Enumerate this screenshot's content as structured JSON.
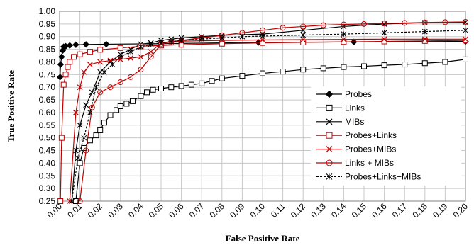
{
  "chart_data": {
    "type": "line",
    "title": "",
    "xlabel": "False Positive Rate",
    "ylabel": "True Positive Rate",
    "xlim": [
      0,
      0.2
    ],
    "ylim": [
      0.25,
      1.0
    ],
    "x_ticks": [
      "0.00",
      "0.01",
      "0.02",
      "0.03",
      "0.04",
      "0.05",
      "0.06",
      "0.07",
      "0.08",
      "0.09",
      "0.10",
      "0.11",
      "0.12",
      "0.13",
      "0.14",
      "0.15",
      "0.16",
      "0.17",
      "0.18",
      "0.19",
      "0.20"
    ],
    "y_ticks": [
      "0.25",
      "0.30",
      "0.35",
      "0.40",
      "0.45",
      "0.50",
      "0.55",
      "0.60",
      "0.65",
      "0.70",
      "0.75",
      "0.80",
      "0.85",
      "0.90",
      "0.95",
      "1.00"
    ],
    "grid": true,
    "legend_position": "right",
    "series": [
      {
        "name": "Probes",
        "color": "#000000",
        "marker": "diamond-filled",
        "dash": "",
        "x": [
          0.0002,
          0.0005,
          0.001,
          0.0015,
          0.002,
          0.003,
          0.005,
          0.008,
          0.013,
          0.023,
          0.05,
          0.098,
          0.145,
          0.2
        ],
        "y": [
          0.74,
          0.79,
          0.82,
          0.845,
          0.86,
          0.862,
          0.865,
          0.868,
          0.869,
          0.87,
          0.872,
          0.877,
          0.879,
          0.881
        ]
      },
      {
        "name": "Links",
        "color": "#000000",
        "marker": "square-open",
        "dash": "",
        "x": [
          0.008,
          0.01,
          0.012,
          0.015,
          0.018,
          0.02,
          0.022,
          0.025,
          0.028,
          0.03,
          0.033,
          0.036,
          0.04,
          0.043,
          0.046,
          0.05,
          0.055,
          0.06,
          0.065,
          0.07,
          0.075,
          0.08,
          0.09,
          0.1,
          0.11,
          0.12,
          0.13,
          0.14,
          0.15,
          0.16,
          0.17,
          0.18,
          0.19,
          0.2
        ],
        "y": [
          0.25,
          0.4,
          0.46,
          0.49,
          0.51,
          0.53,
          0.56,
          0.59,
          0.61,
          0.625,
          0.635,
          0.645,
          0.665,
          0.68,
          0.69,
          0.695,
          0.7,
          0.705,
          0.71,
          0.715,
          0.725,
          0.735,
          0.745,
          0.755,
          0.762,
          0.77,
          0.775,
          0.78,
          0.783,
          0.787,
          0.79,
          0.795,
          0.8,
          0.81
        ]
      },
      {
        "name": "MIBs",
        "color": "#000000",
        "marker": "x",
        "dash": "",
        "x": [
          0.006,
          0.008,
          0.01,
          0.013,
          0.016,
          0.02,
          0.025,
          0.03,
          0.035,
          0.04,
          0.045,
          0.05,
          0.055,
          0.06,
          0.07,
          0.08,
          0.1,
          0.12,
          0.14,
          0.16,
          0.18,
          0.2
        ],
        "y": [
          0.25,
          0.45,
          0.55,
          0.63,
          0.68,
          0.76,
          0.8,
          0.83,
          0.85,
          0.87,
          0.875,
          0.885,
          0.89,
          0.895,
          0.9,
          0.905,
          0.91,
          0.925,
          0.94,
          0.95,
          0.955,
          0.957
        ]
      },
      {
        "name": "Probes+Links",
        "color": "#c00000",
        "marker": "square-open",
        "dash": "",
        "x": [
          0.0004,
          0.001,
          0.002,
          0.003,
          0.004,
          0.005,
          0.007,
          0.01,
          0.015,
          0.02,
          0.03,
          0.04,
          0.05,
          0.06,
          0.08,
          0.1,
          0.12,
          0.14,
          0.16,
          0.18,
          0.2
        ],
        "y": [
          0.25,
          0.5,
          0.71,
          0.75,
          0.78,
          0.8,
          0.82,
          0.83,
          0.84,
          0.848,
          0.855,
          0.862,
          0.865,
          0.868,
          0.872,
          0.875,
          0.877,
          0.879,
          0.881,
          0.883,
          0.885
        ]
      },
      {
        "name": "Probes+MIBs",
        "color": "#c00000",
        "marker": "x",
        "dash": "",
        "x": [
          0.005,
          0.008,
          0.01,
          0.012,
          0.015,
          0.02,
          0.025,
          0.03,
          0.035,
          0.04,
          0.045,
          0.05,
          0.055,
          0.06,
          0.08,
          0.1,
          0.12,
          0.14,
          0.16,
          0.18,
          0.2
        ],
        "y": [
          0.25,
          0.6,
          0.7,
          0.76,
          0.79,
          0.8,
          0.805,
          0.81,
          0.815,
          0.82,
          0.84,
          0.875,
          0.88,
          0.882,
          0.885,
          0.887,
          0.888,
          0.889,
          0.89,
          0.89,
          0.89
        ]
      },
      {
        "name": "Links + MIBs",
        "color": "#c00000",
        "marker": "circle-open",
        "dash": "",
        "x": [
          0.01,
          0.013,
          0.016,
          0.02,
          0.025,
          0.03,
          0.035,
          0.04,
          0.045,
          0.05,
          0.055,
          0.06,
          0.07,
          0.08,
          0.09,
          0.1,
          0.11,
          0.12,
          0.13,
          0.14,
          0.15,
          0.16,
          0.17,
          0.18,
          0.19,
          0.2
        ],
        "y": [
          0.25,
          0.45,
          0.62,
          0.68,
          0.7,
          0.72,
          0.74,
          0.77,
          0.82,
          0.87,
          0.88,
          0.885,
          0.895,
          0.905,
          0.915,
          0.925,
          0.935,
          0.94,
          0.945,
          0.948,
          0.95,
          0.952,
          0.954,
          0.956,
          0.957,
          0.958
        ]
      },
      {
        "name": "Probes+Links+MIBs",
        "color": "#000000",
        "marker": "asterisk",
        "dash": "3,2",
        "x": [
          0.006,
          0.009,
          0.012,
          0.015,
          0.018,
          0.022,
          0.026,
          0.03,
          0.035,
          0.04,
          0.045,
          0.05,
          0.055,
          0.06,
          0.07,
          0.08,
          0.09,
          0.1,
          0.12,
          0.14,
          0.16,
          0.18,
          0.2
        ],
        "y": [
          0.25,
          0.42,
          0.5,
          0.6,
          0.7,
          0.76,
          0.79,
          0.82,
          0.84,
          0.86,
          0.87,
          0.875,
          0.88,
          0.885,
          0.89,
          0.895,
          0.9,
          0.902,
          0.906,
          0.91,
          0.915,
          0.92,
          0.925
        ]
      }
    ]
  }
}
